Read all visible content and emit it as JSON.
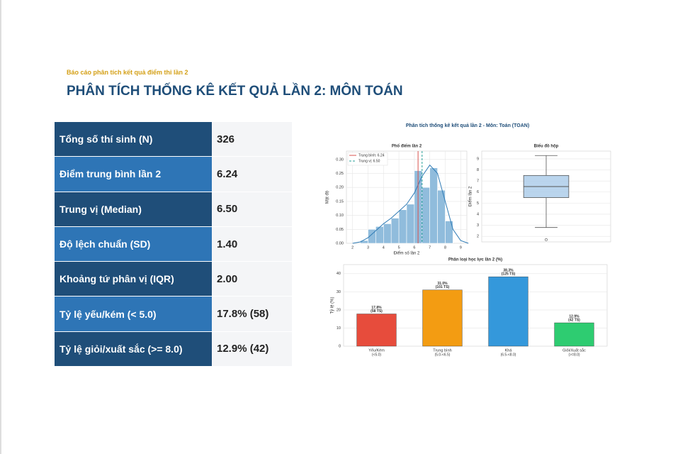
{
  "header": {
    "subtitle": "Báo cáo phân tích kết quả điểm thi lần 2",
    "title": "PHÂN TÍCH THỐNG KÊ KẾT QUẢ LẦN 2: MÔN TOÁN"
  },
  "table": {
    "rows": [
      [
        "Tổng số thí sinh (N)",
        "326"
      ],
      [
        "Điểm trung bình lần 2",
        "6.24"
      ],
      [
        "Trung vị (Median)",
        "6.50"
      ],
      [
        "Độ lệch chuẩn (SD)",
        "1.40"
      ],
      [
        "Khoảng tứ phân vị (IQR)",
        "2.00"
      ],
      [
        "Tỷ lệ yếu/kém (< 5.0)",
        "17.8% (58)"
      ],
      [
        "Tỷ lệ giỏi/xuất sắc (>= 8.0)",
        "12.9% (42)"
      ]
    ]
  },
  "figure_title": "Phân tích thống kê kết quả lần 2 - Môn: Toán (TOAN)",
  "chart_data": [
    {
      "type": "histogram",
      "title": "Phổ điểm lần 2",
      "xlabel": "Điểm số lần 2",
      "ylabel": "Mật độ",
      "bins": [
        2.5,
        3,
        3.5,
        4,
        4.5,
        5,
        5.5,
        6,
        6.5,
        7,
        7.5,
        8,
        8.5
      ],
      "values": [
        0.01,
        0.05,
        0.06,
        0.07,
        0.09,
        0.12,
        0.14,
        0.26,
        0.2,
        0.27,
        0.19,
        0.08
      ],
      "color": "#90bcdc",
      "kde": {
        "x": [
          2,
          2.5,
          3,
          3.5,
          4,
          4.5,
          5,
          5.5,
          6,
          6.5,
          7,
          7.5,
          8,
          8.5,
          9,
          9.5
        ],
        "values": [
          0.0,
          0.005,
          0.02,
          0.045,
          0.07,
          0.09,
          0.115,
          0.14,
          0.18,
          0.24,
          0.28,
          0.25,
          0.15,
          0.05,
          0.01,
          0.0
        ],
        "color": "#2f7bb5"
      },
      "reference_lines": [
        {
          "name": "Trung bình: 6.24",
          "value": 6.24,
          "color": "#d9534f",
          "style": "solid"
        },
        {
          "name": "Trung vị: 6.50",
          "value": 6.5,
          "color": "#2aa198",
          "style": "dashed"
        }
      ],
      "legend": "upper left",
      "grid": true,
      "xlim": [
        1.6,
        9.4
      ],
      "xticks": [
        2,
        3,
        4,
        5,
        6,
        7,
        8,
        9
      ],
      "ylim": [
        0,
        0.33
      ],
      "yticks": [
        {
          "value": 0,
          "label": "0.00"
        },
        {
          "value": 0.05,
          "label": "0.05"
        },
        {
          "value": 0.1,
          "label": "0.10"
        },
        {
          "value": 0.15,
          "label": "0.15"
        },
        {
          "value": 0.2,
          "label": "0.20"
        },
        {
          "value": 0.25,
          "label": "0.25"
        },
        {
          "value": 0.3,
          "label": "0.30"
        }
      ]
    },
    {
      "type": "box",
      "title": "Biểu đồ hộp",
      "ylabel": "Điểm lần 2",
      "whisker_low": 2.8,
      "q1": 5.5,
      "median": 6.5,
      "q3": 7.5,
      "whisker_high": 9.3,
      "outliers": [
        1.7
      ],
      "color": "#a9cbe8",
      "grid": true,
      "ylim": [
        1.5,
        9.7
      ],
      "yticks": [
        2,
        3,
        4,
        5,
        6,
        7,
        8,
        9
      ]
    },
    {
      "type": "bar",
      "title": "Phân loại học lực lần 2 (%)",
      "ylabel": "Tỷ lệ (%)",
      "categories": [
        "Yếu/Kém",
        "Trung bình",
        "Khá",
        "Giỏi/Xuất sắc"
      ],
      "category_notes": [
        "(<5.0)",
        "(5.0-<6.5)",
        "(6.5-<8.0)",
        "(>=8.0)"
      ],
      "values": [
        17.8,
        31.0,
        38.3,
        12.9
      ],
      "value_labels": [
        "17.8%",
        "31.0%",
        "38.3%",
        "12.9%"
      ],
      "count_labels": [
        "(58 TS)",
        "(101 TS)",
        "(125 TS)",
        "(42 TS)"
      ],
      "colors": [
        "#e74c3c",
        "#f39c12",
        "#3498db",
        "#2ecc71"
      ],
      "grid": true,
      "ylim": [
        0,
        45
      ],
      "yticks": [
        0,
        10,
        20,
        30,
        40
      ]
    }
  ]
}
